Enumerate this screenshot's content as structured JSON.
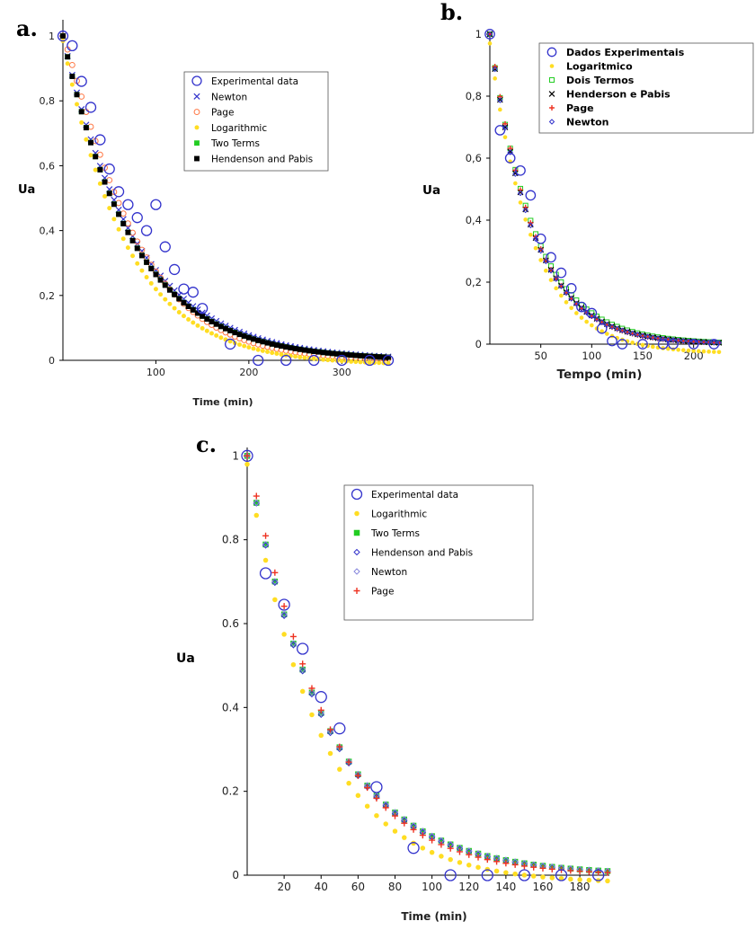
{
  "chart_data": [
    {
      "panel": "a.",
      "type": "scatter",
      "xlabel": "Time (min)",
      "ylabel": "Ua",
      "xlim": [
        0,
        350
      ],
      "ylim": [
        0,
        1.05
      ],
      "x_ticks": [
        {
          "v": 100,
          "label": "100"
        },
        {
          "v": 200,
          "label": "200"
        },
        {
          "v": 300,
          "label": "300"
        }
      ],
      "y_ticks": [
        {
          "v": 0,
          "label": "0"
        },
        {
          "v": 0.2,
          "label": "0,2"
        },
        {
          "v": 0.4,
          "label": "0,4"
        },
        {
          "v": 0.6,
          "label": "0,6"
        },
        {
          "v": 0.8,
          "label": "0,8"
        },
        {
          "v": 1,
          "label": "1"
        }
      ],
      "legend_position": "top-right",
      "series": [
        {
          "name": "Experimental data",
          "marker": "circle-open",
          "color": "#3333cc",
          "x": [
            0,
            10,
            20,
            30,
            40,
            50,
            60,
            70,
            80,
            90,
            100,
            110,
            120,
            130,
            140,
            150,
            180,
            210,
            240,
            270,
            300,
            330,
            350
          ],
          "y": [
            1.0,
            0.97,
            0.86,
            0.78,
            0.68,
            0.59,
            0.52,
            0.48,
            0.44,
            0.4,
            0.48,
            0.35,
            0.28,
            0.22,
            0.21,
            0.16,
            0.05,
            0.0,
            0.0,
            0.0,
            0.0,
            0.0,
            0.0
          ]
        },
        {
          "name": "Newton",
          "marker": "x",
          "color": "#3333cc",
          "model": "newton",
          "params": {
            "k": 0.0128
          }
        },
        {
          "name": "Page",
          "marker": "circle-open-small",
          "color": "#ff7744",
          "model": "page",
          "params": {
            "k": 0.0068,
            "n": 1.14
          }
        },
        {
          "name": "Logarithmic",
          "marker": "dot",
          "color": "#ffdd22",
          "model": "log",
          "params": {
            "a": 1.0,
            "k": 0.0145,
            "c": -0.015
          }
        },
        {
          "name": "Two Terms",
          "marker": "square",
          "color": "#22cc22",
          "model": "two",
          "params": {
            "a": 0.45,
            "k0": 0.013,
            "b": 0.55,
            "k1": 0.0135
          }
        },
        {
          "name": "Hendenson and Pabis",
          "marker": "square",
          "color": "#000000",
          "model": "newton",
          "params": {
            "k": 0.0133
          }
        }
      ]
    },
    {
      "panel": "b.",
      "type": "scatter",
      "xlabel": "Tempo (min)",
      "ylabel": "Ua",
      "xlim": [
        0,
        225
      ],
      "ylim": [
        0,
        1.0
      ],
      "x_ticks": [
        {
          "v": 50,
          "label": "50"
        },
        {
          "v": 100,
          "label": "100"
        },
        {
          "v": 150,
          "label": "150"
        },
        {
          "v": 200,
          "label": "200"
        }
      ],
      "y_ticks": [
        {
          "v": 0,
          "label": "0"
        },
        {
          "v": 0.2,
          "label": "0,2"
        },
        {
          "v": 0.4,
          "label": "0,4"
        },
        {
          "v": 0.6,
          "label": "0,6"
        },
        {
          "v": 0.8,
          "label": "0,8"
        },
        {
          "v": 1,
          "label": "1"
        }
      ],
      "legend_position": "top-right",
      "series": [
        {
          "name": "Dados Experimentais",
          "marker": "circle-open",
          "color": "#3333cc",
          "x": [
            0,
            10,
            20,
            30,
            40,
            50,
            60,
            70,
            80,
            90,
            100,
            110,
            120,
            130,
            150,
            170,
            180,
            200,
            220
          ],
          "y": [
            1.0,
            0.69,
            0.6,
            0.56,
            0.48,
            0.34,
            0.28,
            0.23,
            0.18,
            0.12,
            0.1,
            0.05,
            0.01,
            0.0,
            0.0,
            0.0,
            0.0,
            0.0,
            0.0
          ]
        },
        {
          "name": "Logaritmico",
          "marker": "dot",
          "color": "#ffdd22",
          "model": "log",
          "params": {
            "a": 1.0,
            "k": 0.024,
            "c": -0.03
          }
        },
        {
          "name": "Dois Termos",
          "marker": "square-open",
          "color": "#22cc22",
          "model": "two",
          "params": {
            "a": 0.5,
            "k0": 0.0225,
            "b": 0.5,
            "k1": 0.0235
          }
        },
        {
          "name": "Henderson e Pabis",
          "marker": "x",
          "color": "#000000",
          "model": "newton",
          "params": {
            "k": 0.0238
          }
        },
        {
          "name": "Page",
          "marker": "plus",
          "color": "#ee3322",
          "model": "page",
          "params": {
            "k": 0.021,
            "n": 1.03
          }
        },
        {
          "name": "Newton",
          "marker": "diamond-open",
          "color": "#3333cc",
          "model": "newton",
          "params": {
            "k": 0.024
          }
        }
      ]
    },
    {
      "panel": "c.",
      "type": "scatter",
      "xlabel": "Time (min)",
      "ylabel": "Ua",
      "xlim": [
        0,
        196
      ],
      "ylim": [
        0,
        1.02
      ],
      "x_ticks": [
        {
          "v": 20,
          "label": "20"
        },
        {
          "v": 40,
          "label": "40"
        },
        {
          "v": 60,
          "label": "60"
        },
        {
          "v": 80,
          "label": "80"
        },
        {
          "v": 100,
          "label": "100"
        },
        {
          "v": 120,
          "label": "120"
        },
        {
          "v": 140,
          "label": "140"
        },
        {
          "v": 160,
          "label": "160"
        },
        {
          "v": 180,
          "label": "180"
        }
      ],
      "y_ticks": [
        {
          "v": 0,
          "label": "0"
        },
        {
          "v": 0.2,
          "label": "0.2"
        },
        {
          "v": 0.4,
          "label": "0.4"
        },
        {
          "v": 0.6,
          "label": "0.6"
        },
        {
          "v": 0.8,
          "label": "0.8"
        },
        {
          "v": 1,
          "label": "1"
        }
      ],
      "legend_position": "top-right",
      "series": [
        {
          "name": "Experimental data",
          "marker": "circle-open",
          "color": "#3333cc",
          "x": [
            0,
            10,
            20,
            30,
            40,
            50,
            70,
            90,
            110,
            130,
            150,
            170,
            190
          ],
          "y": [
            1.0,
            0.72,
            0.645,
            0.54,
            0.425,
            0.35,
            0.21,
            0.065,
            0.0,
            0.0,
            0.0,
            0.0,
            0.0
          ]
        },
        {
          "name": "Logarithmic",
          "marker": "dot",
          "color": "#ffdd22",
          "model": "log",
          "params": {
            "a": 1.0,
            "k": 0.026,
            "c": -0.02
          }
        },
        {
          "name": "Two Terms",
          "marker": "square",
          "color": "#22cc22",
          "model": "two",
          "params": {
            "a": 0.5,
            "k0": 0.0235,
            "b": 0.5,
            "k1": 0.024
          }
        },
        {
          "name": "Hendenson and Pabis",
          "marker": "diamond-open",
          "color": "#3333cc",
          "model": "newton",
          "params": {
            "k": 0.024
          }
        },
        {
          "name": "Newton",
          "marker": "diamond-open",
          "color": "#8888dd",
          "model": "newton",
          "params": {
            "k": 0.0237
          }
        },
        {
          "name": "Page",
          "marker": "plus",
          "color": "#ee3322",
          "model": "page",
          "params": {
            "k": 0.018,
            "n": 1.07
          }
        }
      ]
    }
  ]
}
